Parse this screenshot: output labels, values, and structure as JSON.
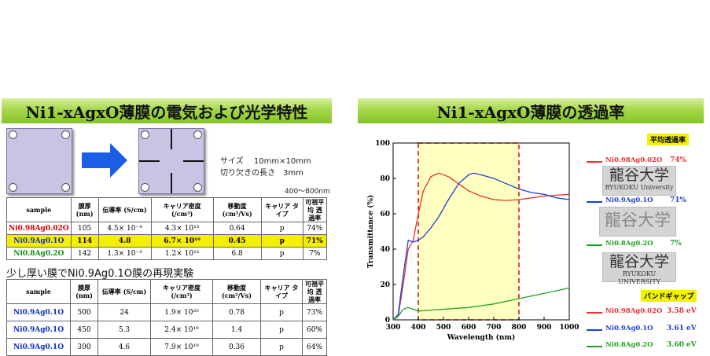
{
  "left_panel": {
    "title": "Ni1-xAgxO薄膜の電気および光学特性",
    "size_note": "サイズ　 10mm×10mm",
    "cut_note": "切り欠きの長さ　3mm",
    "range_note": "400～800nm",
    "table1": {
      "headers": [
        "sample",
        "膜厚 (nm)",
        "伝導率 (S/cm)",
        "キャリア密度 (/cm³)",
        "移動度 (cm²/Vs)",
        "キャリア タイプ",
        "可視平均 透過率"
      ],
      "rows": [
        {
          "sample": "Ni0.98Ag0.02O",
          "cells": [
            "105",
            "4.5× 10⁻⁴",
            "4.3× 10¹⁵",
            "0.64",
            "p",
            "74%"
          ],
          "color": "#e00000",
          "highlight": false
        },
        {
          "sample": "Ni0.9Ag0.1O",
          "cells": [
            "114",
            "4.8",
            "6.7× 10¹⁹",
            "0.45",
            "p",
            "71%"
          ],
          "color": "#1030c0",
          "highlight": true
        },
        {
          "sample": "Ni0.8Ag0.2O",
          "cells": [
            "142",
            "1.3× 10⁻³",
            "1.2× 10¹⁵",
            "6.8",
            "p",
            "7%"
          ],
          "color": "#109010",
          "highlight": false
        }
      ]
    },
    "subtitle": "少し厚い膜でNi0.9Ag0.1O膜の再現実験",
    "table2": {
      "headers": [
        "sample",
        "膜厚 (nm)",
        "伝導率 (S/cm)",
        "キャリア密度 (/cm³)",
        "移動度 (cm²/Vs)",
        "キャリア タイプ",
        "可視平均 透過率"
      ],
      "rows": [
        {
          "sample": "Ni0.9Ag0.1O",
          "cells": [
            "500",
            "24",
            "1.9× 10²⁰",
            "0.78",
            "p",
            "73%"
          ]
        },
        {
          "sample": "Ni0.9Ag0.1O",
          "cells": [
            "450",
            "5.3",
            "2.4× 10¹⁹",
            "1.4",
            "p",
            "60%"
          ]
        },
        {
          "sample": "Ni0.9Ag0.1O",
          "cells": [
            "390",
            "4.6",
            "7.9× 10¹⁹",
            "0.36",
            "p",
            "64%"
          ]
        }
      ]
    }
  },
  "right_panel": {
    "title": "Ni1-xAgxO薄膜の透過率",
    "avg_tag": "平均透過率",
    "gap_tag": "バンドギャップ",
    "legend": [
      {
        "name": "Ni0.98Ag0.02O",
        "pct": "74%",
        "gap": "3.58 eV",
        "color": "#e83030"
      },
      {
        "name": "Ni0.9Ag0.1O",
        "pct": "71%",
        "gap": "3.61 eV",
        "color": "#2040d0"
      },
      {
        "name": "Ni0.8Ag0.2O",
        "pct": "7%",
        "gap": "3.60 eV",
        "color": "#20a020"
      }
    ],
    "logos": [
      {
        "kanji": "龍谷大学",
        "univ": "RYUKOKU University"
      },
      {
        "kanji": "龍谷大学",
        "univ": ""
      },
      {
        "kanji": "龍谷大学",
        "univ": "RYUKOKU UNIVERSITY"
      }
    ]
  },
  "chart_data": {
    "type": "line",
    "xlabel": "Wavelength (nm)",
    "ylabel": "Transmittance (%)",
    "xlim": [
      300,
      1000
    ],
    "ylim": [
      0,
      100
    ],
    "xticks": [
      300,
      400,
      500,
      600,
      700,
      800,
      900,
      1000
    ],
    "yticks": [
      0,
      20,
      40,
      60,
      80,
      100
    ],
    "highlight_range": [
      400,
      800
    ],
    "series": [
      {
        "name": "Ni0.98Ag0.02O",
        "color": "#e83030",
        "x": [
          300,
          320,
          340,
          360,
          380,
          400,
          420,
          450,
          480,
          520,
          560,
          600,
          650,
          700,
          750,
          800,
          850,
          900,
          950,
          1000
        ],
        "y": [
          0,
          2,
          20,
          40,
          45,
          60,
          73,
          81,
          83,
          81,
          77,
          73,
          70,
          68,
          67.5,
          68,
          69,
          70,
          70.5,
          71
        ]
      },
      {
        "name": "Ni0.9Ag0.1O",
        "color": "#2040d0",
        "x": [
          300,
          320,
          340,
          360,
          380,
          400,
          420,
          450,
          480,
          520,
          560,
          600,
          620,
          650,
          700,
          750,
          800,
          850,
          900,
          950,
          1000
        ],
        "y": [
          0,
          3,
          25,
          45,
          44,
          45,
          47,
          52,
          58,
          68,
          77,
          82,
          83,
          82,
          80,
          77,
          74,
          72,
          71,
          69,
          68
        ]
      },
      {
        "name": "Ni0.8Ag0.2O",
        "color": "#20a020",
        "x": [
          300,
          320,
          340,
          360,
          380,
          400,
          450,
          500,
          550,
          600,
          650,
          700,
          750,
          800,
          850,
          900,
          950,
          1000
        ],
        "y": [
          0,
          2,
          6,
          7,
          6,
          5,
          5.5,
          6,
          6.5,
          7,
          8,
          9,
          10.5,
          12,
          13.5,
          15,
          16.5,
          18
        ]
      }
    ]
  }
}
